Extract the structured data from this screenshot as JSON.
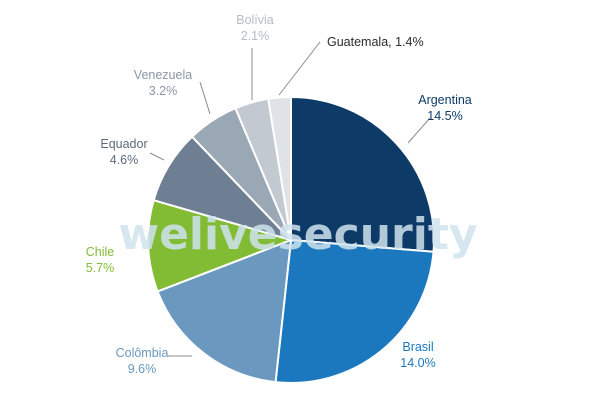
{
  "watermark": "welivesecurity",
  "chart_data": {
    "type": "pie",
    "slices": [
      {
        "name": "Argentina",
        "value": 14.5,
        "label": "14.5%",
        "color": "#0d3a66"
      },
      {
        "name": "Brasil",
        "value": 14.0,
        "label": "14.0%",
        "color": "#1b78bf"
      },
      {
        "name": "Colômbia",
        "value": 9.6,
        "label": "9.6%",
        "color": "#6a98bf"
      },
      {
        "name": "Chile",
        "value": 5.7,
        "label": "5.7%",
        "color": "#82bb34"
      },
      {
        "name": "Equador",
        "value": 4.6,
        "label": "4.6%",
        "color": "#6f7f93"
      },
      {
        "name": "Venezuela",
        "value": 3.2,
        "label": "3.2%",
        "color": "#9aa7b5"
      },
      {
        "name": "Bolívia",
        "value": 2.1,
        "label": "2.1%",
        "color": "#c2c9d1"
      },
      {
        "name": "Guatemala",
        "value": 1.4,
        "label": "1.4%",
        "color": "#dfe3e7"
      }
    ],
    "label_colors": {
      "Argentina": "#0d3a66",
      "Brasil": "#1b78bf",
      "Colômbia": "#6a98bf",
      "Chile": "#82bb34",
      "Equador": "#5e6b7a",
      "Venezuela": "#8a96a3",
      "Bolívia": "#b4bcc5",
      "Guatemala": "#2b2b2b"
    }
  }
}
